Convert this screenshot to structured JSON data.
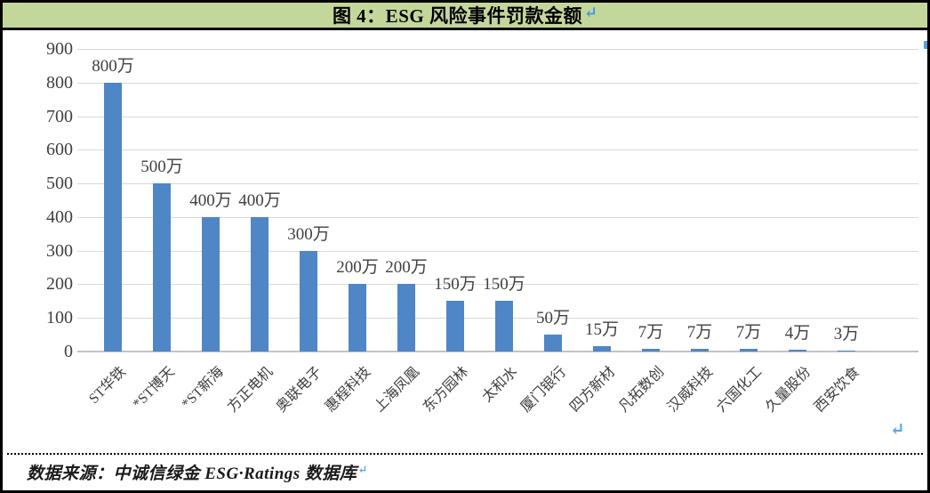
{
  "header": {
    "title": "图 4：ESG 风险事件罚款金额",
    "paragraph_mark": "↵"
  },
  "chart_data": {
    "type": "bar",
    "title": "图 4：ESG 风险事件罚款金额",
    "categories": [
      "ST华铁",
      "*ST博天",
      "*ST新海",
      "方正电机",
      "奥联电子",
      "惠程科技",
      "上海凤凰",
      "东方园林",
      "太和水",
      "厦门银行",
      "四方新材",
      "凡拓数创",
      "汉威科技",
      "六国化工",
      "久量股份",
      "西安饮食"
    ],
    "values": [
      800,
      500,
      400,
      400,
      300,
      200,
      200,
      150,
      150,
      50,
      15,
      7,
      7,
      7,
      4,
      3
    ],
    "value_labels": [
      "800万",
      "500万",
      "400万",
      "400万",
      "300万",
      "200万",
      "200万",
      "150万",
      "150万",
      "50万",
      "15万",
      "7万",
      "7万",
      "7万",
      "4万",
      "3万"
    ],
    "value_unit": "万",
    "xlabel": "",
    "ylabel": "",
    "ylim": [
      0,
      900
    ],
    "yticks": [
      0,
      100,
      200,
      300,
      400,
      500,
      600,
      700,
      800,
      900
    ],
    "grid": true,
    "legend_position": "none",
    "bar_color": "#4F86C6"
  },
  "footer": {
    "source": "数据来源：中诚信绿金 ESG·Ratings 数据库",
    "paragraph_mark": "↵"
  },
  "colors": {
    "header_bg": "#C4D79B",
    "bar": "#4F86C6",
    "gridline": "#D9D9D9",
    "axis_line": "#C3C3C3",
    "text": "#404040",
    "paragraph_mark": "#4596E4",
    "border": "#000000"
  }
}
